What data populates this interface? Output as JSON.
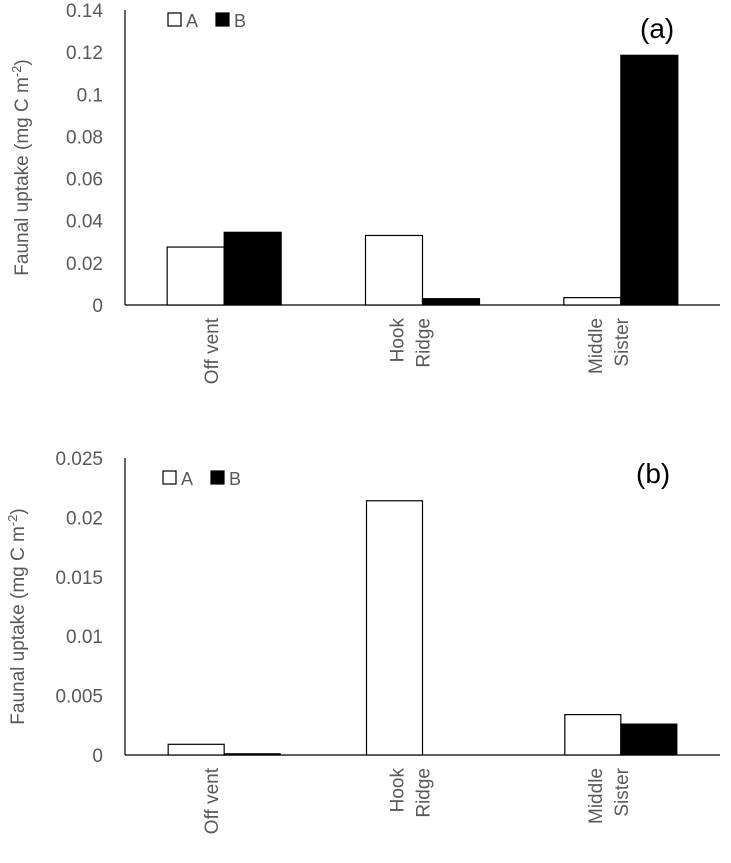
{
  "chart_data": [
    {
      "type": "bar",
      "panel_label": "(a)",
      "categories": [
        [
          "Off vent"
        ],
        [
          "Hook",
          "Ridge"
        ],
        [
          "Middle",
          "Sister"
        ]
      ],
      "series": [
        {
          "name": "A",
          "values": [
            0.0275,
            0.033,
            0.0035
          ]
        },
        {
          "name": "B",
          "values": [
            0.0345,
            0.003,
            0.1185
          ]
        }
      ],
      "ylabel": "Faunal uptake (mg C m-2)",
      "ylim": [
        0,
        0.14
      ],
      "yticks": [
        "0",
        "0.02",
        "0.04",
        "0.06",
        "0.08",
        "0.1",
        "0.12",
        "0.14"
      ],
      "legend_position": "top-left",
      "grid": false
    },
    {
      "type": "bar",
      "panel_label": "(b)",
      "categories": [
        [
          "Off vent"
        ],
        [
          "Hook",
          "Ridge"
        ],
        [
          "Middle",
          "Sister"
        ]
      ],
      "series": [
        {
          "name": "A",
          "values": [
            0.0009,
            0.0214,
            0.0034
          ]
        },
        {
          "name": "B",
          "values": [
            0.0001,
            0,
            0.0026
          ]
        }
      ],
      "ylabel": "Faunal uptake (mg C m-2)",
      "ylim": [
        0,
        0.025
      ],
      "yticks": [
        "0",
        "0.005",
        "0.01",
        "0.015",
        "0.02",
        "0.025"
      ],
      "legend_position": "top-left",
      "grid": false
    }
  ],
  "colors": {
    "series_a_fill": "#ffffff",
    "series_b_fill": "#000000",
    "axis": "#000000",
    "text": "#595959"
  }
}
